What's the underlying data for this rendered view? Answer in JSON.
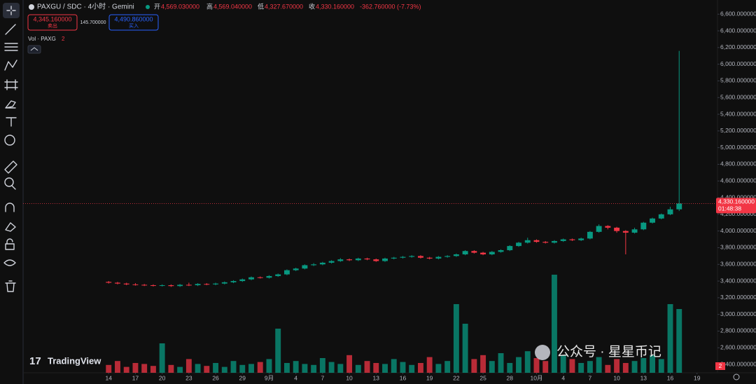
{
  "header": {
    "symbol": "PAXGU / SDC · 4小时 · Gemini",
    "open_label": "开",
    "open": "4,569.030000",
    "high_label": "高",
    "high": "4,569.040000",
    "low_label": "低",
    "low": "4,327.670000",
    "close_label": "收",
    "close": "4,330.160000",
    "change": "-362.760000 (-7.73%)",
    "sell_price": "4,345.160000",
    "sell_label": "卖出",
    "spread": "145.700000",
    "buy_price": "4,490.860000",
    "buy_label": "买入",
    "volume_label": "Vol · PAXG",
    "volume_count": "2"
  },
  "watermark": "TradingView",
  "overlay_text": "公众号 · 星星币记",
  "countdown": "01:48:38",
  "badge": "2",
  "chart_data": {
    "type": "candlestick",
    "x": [
      14,
      15,
      16,
      17,
      18,
      19,
      20,
      21,
      22,
      23,
      24,
      25,
      26,
      27,
      28,
      29,
      30,
      31,
      32,
      33,
      34,
      35,
      36,
      37,
      38,
      39,
      40,
      41,
      42,
      43,
      44,
      45,
      46,
      47,
      48,
      49,
      50,
      51,
      52,
      53,
      54,
      55,
      56,
      57,
      58,
      59,
      60,
      61,
      62,
      63,
      64,
      65,
      66,
      67,
      68,
      69,
      70,
      71,
      72,
      73,
      74,
      75,
      76,
      77,
      78
    ],
    "open": [
      3390,
      3380,
      3370,
      3360,
      3355,
      3350,
      3345,
      3350,
      3340,
      3355,
      3350,
      3365,
      3360,
      3370,
      3385,
      3400,
      3420,
      3445,
      3440,
      3460,
      3480,
      3530,
      3550,
      3590,
      3600,
      3620,
      3640,
      3660,
      3650,
      3670,
      3660,
      3640,
      3670,
      3680,
      3690,
      3700,
      3680,
      3670,
      3690,
      3700,
      3720,
      3760,
      3740,
      3720,
      3750,
      3770,
      3820,
      3860,
      3890,
      3870,
      3860,
      3880,
      3900,
      3890,
      3910,
      3990,
      4060,
      4040,
      4000,
      3980,
      4020,
      4100,
      4150,
      4200,
      4260
    ],
    "high": [
      3400,
      3390,
      3380,
      3375,
      3365,
      3360,
      3360,
      3360,
      3365,
      3380,
      3375,
      3375,
      3380,
      3395,
      3410,
      3430,
      3455,
      3455,
      3470,
      3490,
      3540,
      3560,
      3600,
      3615,
      3630,
      3650,
      3675,
      3670,
      3680,
      3680,
      3670,
      3680,
      3690,
      3700,
      3710,
      3710,
      3690,
      3700,
      3710,
      3730,
      3770,
      3770,
      3750,
      3760,
      3780,
      3830,
      3870,
      3920,
      3900,
      3880,
      3890,
      3910,
      3910,
      3920,
      4000,
      4080,
      4070,
      4050,
      4010,
      4040,
      4110,
      4160,
      4210,
      4290,
      6160
    ],
    "low": [
      3370,
      3360,
      3350,
      3345,
      3340,
      3335,
      3335,
      3330,
      3330,
      3340,
      3340,
      3350,
      3350,
      3360,
      3375,
      3390,
      3410,
      3430,
      3430,
      3450,
      3470,
      3520,
      3540,
      3580,
      3590,
      3610,
      3630,
      3640,
      3640,
      3650,
      3630,
      3630,
      3660,
      3670,
      3680,
      3670,
      3660,
      3660,
      3680,
      3690,
      3710,
      3730,
      3710,
      3710,
      3740,
      3760,
      3810,
      3850,
      3860,
      3850,
      3850,
      3870,
      3880,
      3880,
      3900,
      3980,
      4020,
      3980,
      3720,
      3970,
      4010,
      4090,
      4140,
      4190,
      4240
    ],
    "close": [
      3380,
      3370,
      3360,
      3355,
      3350,
      3345,
      3350,
      3340,
      3355,
      3350,
      3365,
      3360,
      3370,
      3385,
      3400,
      3420,
      3445,
      3440,
      3460,
      3480,
      3530,
      3550,
      3590,
      3600,
      3620,
      3640,
      3660,
      3650,
      3670,
      3660,
      3640,
      3670,
      3680,
      3690,
      3700,
      3680,
      3670,
      3690,
      3700,
      3720,
      3760,
      3740,
      3720,
      3750,
      3770,
      3820,
      3860,
      3890,
      3870,
      3860,
      3880,
      3900,
      3890,
      3910,
      3990,
      4060,
      4040,
      4000,
      3980,
      4020,
      4100,
      4150,
      4200,
      4260,
      4330
    ],
    "volume": [
      8,
      12,
      6,
      10,
      9,
      7,
      30,
      8,
      6,
      14,
      9,
      7,
      10,
      6,
      12,
      8,
      9,
      11,
      14,
      45,
      10,
      12,
      9,
      8,
      15,
      11,
      9,
      18,
      8,
      12,
      10,
      9,
      14,
      11,
      8,
      10,
      16,
      9,
      12,
      70,
      50,
      14,
      18,
      12,
      20,
      10,
      16,
      22,
      15,
      12,
      100,
      18,
      14,
      10,
      12,
      16,
      8,
      14,
      10,
      12,
      15,
      18,
      14,
      70,
      65
    ],
    "up_color": "#089981",
    "down_color": "#f23645",
    "xlim": [
      4.4,
      82.3
    ],
    "ylim": [
      2300,
      6770
    ],
    "grid": false,
    "xticks": [
      14,
      17,
      20,
      23,
      26,
      29,
      {
        "value": 32,
        "label": "9月"
      },
      {
        "value": 35,
        "label": "4"
      },
      {
        "value": 38,
        "label": "7"
      },
      {
        "value": 41,
        "label": "10"
      },
      {
        "value": 44,
        "label": "13"
      },
      {
        "value": 47,
        "label": "16"
      },
      {
        "value": 50,
        "label": "19"
      },
      {
        "value": 53,
        "label": "22"
      },
      {
        "value": 56,
        "label": "25"
      },
      {
        "value": 59,
        "label": "28"
      },
      {
        "value": 62,
        "label": "10月"
      },
      {
        "value": 65,
        "label": "4"
      },
      {
        "value": 68,
        "label": "7"
      },
      {
        "value": 71,
        "label": "10"
      },
      {
        "value": 74,
        "label": "13"
      },
      {
        "value": 77,
        "label": "16"
      },
      {
        "value": 80,
        "label": "19"
      }
    ],
    "yticks": [
      {
        "value": 2400,
        "label": "2,400.000000"
      },
      {
        "value": 2600,
        "label": "2,600.000000"
      },
      {
        "value": 2800,
        "label": "2,800.000000"
      },
      {
        "value": 3000,
        "label": "3,000.000000"
      },
      {
        "value": 3200,
        "label": "3,200.000000"
      },
      {
        "value": 3400,
        "label": "3,400.000000"
      },
      {
        "value": 3600,
        "label": "3,600.000000"
      },
      {
        "value": 3800,
        "label": "3,800.000000"
      },
      {
        "value": 4000,
        "label": "4,000.000000"
      },
      {
        "value": 4200,
        "label": "4,200.000000"
      },
      {
        "value": 4400,
        "label": "4,400.000000"
      },
      {
        "value": 4600,
        "label": "4,600.000000"
      },
      {
        "value": 4800,
        "label": "4,800.000000"
      },
      {
        "value": 5000,
        "label": "5,000.000000"
      },
      {
        "value": 5200,
        "label": "5,200.000000"
      },
      {
        "value": 5400,
        "label": "5,400.000000"
      },
      {
        "value": 5600,
        "label": "5,600.000000"
      },
      {
        "value": 5800,
        "label": "5,800.000000"
      },
      {
        "value": 6000,
        "label": "6,000.000000"
      },
      {
        "value": 6200,
        "label": "6,200.000000"
      },
      {
        "value": 6400,
        "label": "6,400.000000"
      },
      {
        "value": 6600,
        "label": "6,600.000000"
      }
    ],
    "last_price": {
      "value": 4330.16,
      "label": "4,330.160000"
    }
  }
}
